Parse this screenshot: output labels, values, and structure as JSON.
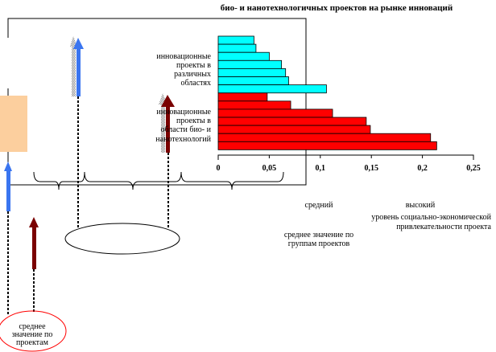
{
  "title": "био- и нанотехнологичных проектов на рынке инноваций",
  "colors": {
    "cyan_series": "#00ffff",
    "red_series": "#ff0000",
    "blue_arrow": "#3a75f0",
    "dark_red_arrow": "#7a0000",
    "peach_box": "#fccf9e",
    "red_ellipse": "#ff0000"
  },
  "chart_data": {
    "type": "bar",
    "orientation": "horizontal",
    "xlim": [
      0,
      0.25
    ],
    "ticks": [
      "0",
      "0,05",
      "0,1",
      "0,15",
      "0,2",
      "0,25"
    ],
    "tick_values": [
      0,
      0.05,
      0.1,
      0.15,
      0.2,
      0.25
    ],
    "series": [
      {
        "label_lines": [
          "инновационные",
          "проекты в",
          "различных",
          "областях"
        ],
        "color": "#00ffff",
        "values": [
          0.035,
          0.037,
          0.05,
          0.062,
          0.066,
          0.069,
          0.106
        ]
      },
      {
        "label_lines": [
          "инновационные",
          "проекты в",
          "области био- и",
          "нанотехнологий"
        ],
        "color": "#ff0000",
        "values": [
          0.048,
          0.071,
          0.112,
          0.145,
          0.149,
          0.208,
          0.214
        ]
      }
    ]
  },
  "labels": {
    "medium": "средний",
    "high": "высокий",
    "level_line1": "уровень социально-экономической",
    "level_line2": "привлекательности проекта",
    "group_avg_line1": "среднее значение по",
    "group_avg_line2": "группам проектов",
    "project_avg_line1": "среднее",
    "project_avg_line2": "значение по",
    "project_avg_line3": "проектам"
  }
}
